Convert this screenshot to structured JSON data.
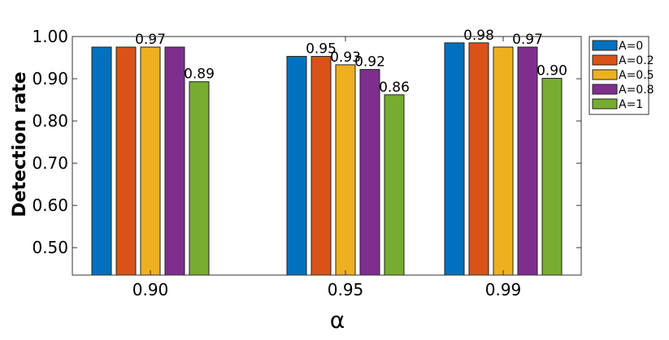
{
  "chart_data": {
    "type": "bar",
    "categories": [
      "0.90",
      "0.95",
      "0.99"
    ],
    "series": [
      {
        "name": "A=0",
        "color": "#0072BD",
        "values": [
          0.975,
          0.953,
          0.985
        ]
      },
      {
        "name": "A=0.2",
        "color": "#D95319",
        "values": [
          0.975,
          0.953,
          0.985
        ]
      },
      {
        "name": "A=0.5",
        "color": "#EDB120",
        "values": [
          0.975,
          0.933,
          0.975
        ]
      },
      {
        "name": "A=0.8",
        "color": "#7E2F8E",
        "values": [
          0.975,
          0.922,
          0.975
        ]
      },
      {
        "name": "A=1",
        "color": "#77AC30",
        "values": [
          0.893,
          0.862,
          0.901
        ]
      }
    ],
    "data_labels": [
      {
        "text": "0.97",
        "category": 0,
        "series": 2
      },
      {
        "text": "0.89",
        "category": 0,
        "series": 4
      },
      {
        "text": "0.95",
        "category": 1,
        "series": 1
      },
      {
        "text": "0.93",
        "category": 1,
        "series": 2
      },
      {
        "text": "0.92",
        "category": 1,
        "series": 3
      },
      {
        "text": "0.86",
        "category": 1,
        "series": 4
      },
      {
        "text": "0.98",
        "category": 2,
        "series": 1
      },
      {
        "text": "0.97",
        "category": 2,
        "series": 3
      },
      {
        "text": "0.90",
        "category": 2,
        "series": 4
      }
    ],
    "xlabel": "α",
    "ylabel": "Detection rate",
    "ylim": [
      0.435,
      1.0
    ],
    "yticks": [
      0.5,
      0.6,
      0.7,
      0.8,
      0.9,
      1.0
    ],
    "ytick_labels": [
      "0.50",
      "0.60",
      "0.70",
      "0.80",
      "0.90",
      "1.00"
    ],
    "grid": false,
    "legend_position": "outside-top-right"
  }
}
